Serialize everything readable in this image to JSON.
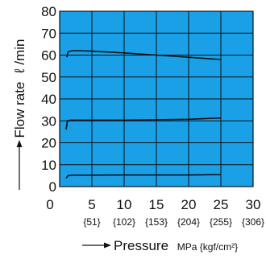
{
  "chart_data": {
    "type": "line",
    "title": "",
    "xlabel": "Pressure",
    "xunit": "MPa {kgf/cm²}",
    "ylabel": "Flow rate",
    "yunit": "ℓ /min",
    "xlim": [
      0,
      30
    ],
    "ylim": [
      0,
      80
    ],
    "x_ticks": [
      "5",
      "10",
      "15",
      "20",
      "25",
      "30"
    ],
    "x_ticks_secondary": [
      "{51}",
      "{102}",
      "{153}",
      "{204}",
      "{255}",
      "{306}"
    ],
    "y_ticks": [
      "0",
      "10",
      "20",
      "30",
      "40",
      "50",
      "60",
      "70",
      "80"
    ],
    "grid": true,
    "plot_background": "#1aa0e6",
    "line_color": "#111111",
    "series": [
      {
        "x": [
          1.1,
          1.3,
          2,
          3,
          5,
          10,
          15,
          20,
          25
        ],
        "y": [
          59,
          61.5,
          62,
          62,
          61.8,
          61,
          60,
          59,
          58
        ]
      },
      {
        "x": [
          1.0,
          1.2,
          1.6,
          3,
          10,
          15,
          20,
          25
        ],
        "y": [
          26,
          30,
          30.3,
          30.3,
          30.3,
          30.5,
          30.7,
          31.3
        ]
      },
      {
        "x": [
          1.0,
          1.3,
          2,
          5,
          10,
          15,
          20,
          25
        ],
        "y": [
          3.8,
          5,
          5.2,
          5.2,
          5.3,
          5.3,
          5.3,
          5.5
        ]
      }
    ]
  }
}
